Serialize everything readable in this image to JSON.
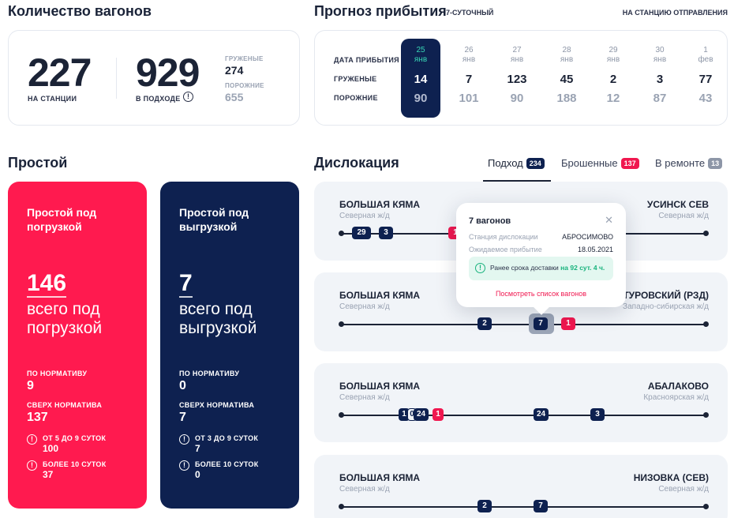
{
  "wagons": {
    "title": "Количество вагонов",
    "at_station": {
      "value": "227",
      "label": "НА СТАНЦИИ"
    },
    "approaching": {
      "value": "929",
      "label": "В ПОДХОДЕ"
    },
    "loaded": {
      "label": "ГРУЖЕНЫЕ",
      "value": "274"
    },
    "empty": {
      "label": "ПОРОЖНИЕ",
      "value": "655"
    }
  },
  "forecast": {
    "title": "Прогноз прибытия",
    "subtitle": "7-СУТОЧНЫЙ",
    "station_link": "НА СТАНЦИЮ ОТПРАВЛЕНИЯ",
    "row_labels": {
      "date": "ДАТА ПРИБЫТИЯ",
      "loaded": "ГРУЖЕНЫЕ",
      "empty": "ПОРОЖНИЕ"
    },
    "days": [
      {
        "day": "25",
        "month": "янв",
        "loaded": "14",
        "empty": "90",
        "active": true
      },
      {
        "day": "26",
        "month": "янв",
        "loaded": "7",
        "empty": "101"
      },
      {
        "day": "27",
        "month": "янв",
        "loaded": "123",
        "empty": "90"
      },
      {
        "day": "28",
        "month": "янв",
        "loaded": "45",
        "empty": "188"
      },
      {
        "day": "29",
        "month": "янв",
        "loaded": "2",
        "empty": "12"
      },
      {
        "day": "30",
        "month": "янв",
        "loaded": "3",
        "empty": "87"
      },
      {
        "day": "1",
        "month": "фев",
        "loaded": "77",
        "empty": "43"
      }
    ]
  },
  "idle": {
    "title": "Простой",
    "loading": {
      "title": "Простой под погрузкой",
      "value": "146",
      "desc": "всего под погрузкой",
      "norm_label": "ПО НОРМАТИВУ",
      "norm_value": "9",
      "over_label": "СВЕРХ НОРМАТИВА",
      "over_value": "137",
      "range1_label": "ОТ 5 ДО 9 СУТОК",
      "range1_value": "100",
      "range2_label": "БОЛЕЕ 10 СУТОК",
      "range2_value": "37",
      "color": "#ff1a4f"
    },
    "unloading": {
      "title": "Простой под выгрузкой",
      "value": "7",
      "desc": "всего под выгрузкой",
      "norm_label": "ПО НОРМАТИВУ",
      "norm_value": "0",
      "over_label": "СВЕРХ НОРМАТИВА",
      "over_value": "7",
      "range1_label": "ОТ 3 ДО 9 СУТОК",
      "range1_value": "7",
      "range2_label": "БОЛЕЕ 10 СУТОК",
      "range2_value": "0",
      "color": "#0e2150"
    }
  },
  "dislocation": {
    "title": "Дислокация",
    "tabs": [
      {
        "label": "Подход",
        "count": "234",
        "color": "#0e2150",
        "active": true
      },
      {
        "label": "Брошенные",
        "count": "137",
        "color": "#f0174f"
      },
      {
        "label": "В ремонте",
        "count": "13",
        "color": "#8d96a7"
      }
    ],
    "routes": [
      {
        "from": "БОЛЬШАЯ КЯМА",
        "from_rw": "Северная ж/д",
        "to": "УСИНСК СЕВ",
        "to_rw": "Северная ж/д",
        "chips": [
          {
            "text": "29",
            "color": "navy"
          },
          {
            "text": "3",
            "color": "navy"
          },
          {
            "text": "1",
            "color": "red"
          }
        ]
      },
      {
        "from": "БОЛЬШАЯ КЯМА",
        "from_rw": "Северная ж/д",
        "to": "ТУРОВСКИЙ (РЗД)",
        "to_rw": "Западно-сибирская ж/д",
        "chips": [
          {
            "text": "2",
            "color": "navy"
          },
          {
            "text": "7",
            "color": "navy"
          },
          {
            "text": "1",
            "color": "red"
          }
        ]
      },
      {
        "from": "БОЛЬШАЯ КЯМА",
        "from_rw": "Северная ж/д",
        "to": "АБАЛАКОВО",
        "to_rw": "Красноярская ж/д",
        "chips": [
          {
            "text": "1",
            "color": "navy"
          },
          {
            "text": "0",
            "color": "navy"
          },
          {
            "text": "24",
            "color": "navy"
          },
          {
            "text": "1",
            "color": "red"
          },
          {
            "text": "24",
            "color": "navy"
          },
          {
            "text": "3",
            "color": "navy"
          }
        ]
      },
      {
        "from": "БОЛЬШАЯ КЯМА",
        "from_rw": "Северная ж/д",
        "to": "НИЗОВКА (СЕВ)",
        "to_rw": "Северная ж/д",
        "chips": [
          {
            "text": "2",
            "color": "navy"
          },
          {
            "text": "7",
            "color": "navy"
          }
        ]
      }
    ]
  },
  "tooltip": {
    "title": "7 вагонов",
    "close_icon": "close-icon",
    "station_label": "Станция дислокации",
    "station_value": "АБРОСИМОВО",
    "arrival_label": "Ожидаемое прибытие",
    "arrival_value": "18.05.2021",
    "notice_prefix": "Ранее срока доставки",
    "notice_highlight": "на 92 сут. 4 ч.",
    "link": "Посмотреть список вагонов"
  }
}
